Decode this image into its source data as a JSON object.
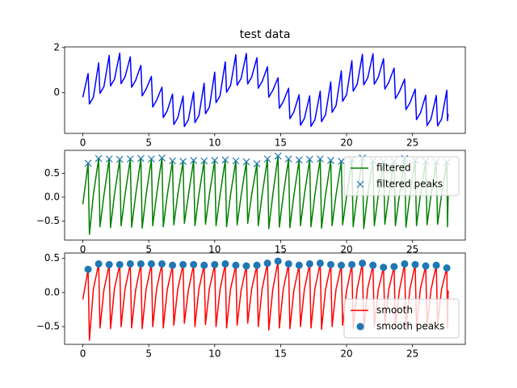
{
  "chart_data": [
    {
      "type": "line",
      "title": "test data",
      "x": [
        0,
        0.4,
        0.5,
        0.8,
        1.2,
        1.3,
        1.6,
        2.0,
        2.1,
        2.4,
        2.8,
        2.9,
        3.2,
        3.6,
        3.7,
        4.0,
        4.4,
        4.5,
        4.8,
        5.2,
        5.3,
        5.6,
        6.0,
        6.1,
        6.4,
        6.8,
        6.9,
        7.2,
        7.6,
        7.7,
        8.0,
        8.4,
        8.5,
        8.8,
        9.2,
        9.3,
        9.6,
        10.0,
        10.1,
        10.4,
        10.8,
        10.9,
        11.2,
        11.6,
        11.7,
        12.0,
        12.4,
        12.5,
        12.8,
        13.2,
        13.3,
        13.6,
        14.0,
        14.1,
        14.4,
        14.8,
        14.9,
        15.2,
        15.6,
        15.7,
        16.0,
        16.4,
        16.5,
        16.8,
        17.2,
        17.3,
        17.6,
        18.0,
        18.1,
        18.4,
        18.8,
        18.9,
        19.2,
        19.6,
        19.7,
        20.0,
        20.4,
        20.5,
        20.8,
        21.2,
        21.3,
        21.6,
        22.0,
        22.1,
        22.4,
        22.8,
        22.9,
        23.2,
        23.6,
        23.7,
        24.0,
        24.4,
        24.5,
        24.8,
        25.2,
        25.3,
        25.6,
        26.0,
        26.1,
        26.4,
        26.8,
        26.9,
        27.2,
        27.6,
        27.65,
        27.7
      ],
      "series": [
        {
          "color": "#0000ff",
          "values": [
            -0.2,
            0.85,
            -0.5,
            -0.2,
            1.32,
            -0.03,
            0.27,
            1.65,
            0.3,
            0.6,
            1.75,
            0.4,
            0.7,
            1.59,
            0.24,
            0.54,
            1.21,
            -0.14,
            0.16,
            0.72,
            -0.63,
            -0.33,
            0.25,
            -1.1,
            -0.8,
            -0.06,
            -1.41,
            -1.11,
            -0.15,
            -1.5,
            -1.2,
            0.03,
            -1.32,
            -1.02,
            0.42,
            -0.93,
            -0.63,
            0.91,
            -0.44,
            -0.14,
            1.37,
            0.02,
            0.32,
            1.68,
            0.33,
            0.63,
            1.74,
            0.39,
            0.69,
            1.55,
            0.2,
            0.5,
            1.15,
            -0.2,
            0.1,
            0.66,
            -0.69,
            -0.39,
            0.2,
            -1.15,
            -0.85,
            -0.09,
            -1.44,
            -1.14,
            -0.14,
            -1.49,
            -1.19,
            0.07,
            -1.28,
            -0.98,
            0.48,
            -0.87,
            -0.57,
            0.97,
            -0.38,
            -0.08,
            1.42,
            0.07,
            0.37,
            1.7,
            0.35,
            0.65,
            1.73,
            0.38,
            0.68,
            1.51,
            0.16,
            0.46,
            1.09,
            -0.26,
            0.04,
            0.6,
            -0.75,
            -0.45,
            0.16,
            -1.19,
            -0.89,
            -0.11,
            -1.46,
            -1.16,
            -0.12,
            -1.47,
            -1.17,
            0.11,
            -1.24,
            -0.94
          ]
        }
      ],
      "xlim": [
        -1.38,
        29.0
      ],
      "xticks": [
        0,
        5,
        10,
        15,
        20,
        25
      ],
      "ylim": [
        -1.8,
        2.03
      ],
      "yticks": [
        0,
        2
      ]
    },
    {
      "type": "line",
      "x": [
        0,
        0.4,
        0.5,
        0.8,
        1.2,
        1.3,
        1.6,
        2.0,
        2.1,
        2.4,
        2.8,
        2.9,
        3.2,
        3.6,
        3.7,
        4.0,
        4.4,
        4.5,
        4.8,
        5.2,
        5.3,
        5.6,
        6.0,
        6.1,
        6.4,
        6.8,
        6.9,
        7.2,
        7.6,
        7.7,
        8.0,
        8.4,
        8.5,
        8.8,
        9.2,
        9.3,
        9.6,
        10.0,
        10.1,
        10.4,
        10.8,
        10.9,
        11.2,
        11.6,
        11.7,
        12.0,
        12.4,
        12.5,
        12.8,
        13.2,
        13.3,
        13.6,
        14.0,
        14.1,
        14.4,
        14.8,
        14.9,
        15.2,
        15.6,
        15.7,
        16.0,
        16.4,
        16.5,
        16.8,
        17.2,
        17.3,
        17.6,
        18.0,
        18.1,
        18.4,
        18.8,
        18.9,
        19.2,
        19.6,
        19.7,
        20.0,
        20.4,
        20.5,
        20.8,
        21.2,
        21.3,
        21.6,
        22.0,
        22.1,
        22.4,
        22.8,
        22.9,
        23.2,
        23.6,
        23.7,
        24.0,
        24.4,
        24.5,
        24.8,
        25.2,
        25.3,
        25.6,
        26.0,
        26.1,
        26.4,
        26.8,
        26.9,
        27.2,
        27.6,
        27.65,
        27.7
      ],
      "series": [
        {
          "name": "filtered",
          "color": "#008000",
          "values": [
            -0.15,
            0.71,
            -0.78,
            0.05,
            0.81,
            -0.62,
            0.04,
            0.8,
            -0.64,
            0.06,
            0.79,
            -0.6,
            0.05,
            0.8,
            -0.63,
            0.03,
            0.81,
            -0.65,
            0.05,
            0.8,
            -0.6,
            0.06,
            0.82,
            -0.62,
            0.04,
            0.76,
            -0.58,
            0.05,
            0.75,
            -0.55,
            0.03,
            0.77,
            -0.6,
            0.05,
            0.76,
            -0.57,
            0.06,
            0.77,
            -0.6,
            0.04,
            0.78,
            -0.62,
            0.05,
            0.76,
            -0.58,
            0.03,
            0.74,
            -0.55,
            0.05,
            0.7,
            -0.6,
            0.06,
            0.8,
            -0.66,
            0.04,
            0.86,
            -0.63,
            0.05,
            0.8,
            -0.64,
            0.03,
            0.78,
            -0.6,
            0.05,
            0.79,
            -0.62,
            0.06,
            0.8,
            -0.65,
            0.04,
            0.77,
            -0.6,
            0.05,
            0.75,
            -0.58,
            0.03,
            0.78,
            -0.62,
            0.05,
            0.82,
            -0.66,
            0.06,
            0.76,
            -0.6,
            0.04,
            0.74,
            -0.57,
            0.05,
            0.75,
            -0.6,
            0.03,
            0.81,
            -0.63,
            0.05,
            0.77,
            -0.6,
            0.06,
            0.75,
            -0.58,
            0.04,
            0.74,
            -0.57,
            0.05,
            0.73,
            -0.62,
            0.03
          ]
        },
        {
          "name": "filtered peaks",
          "type": "scatter",
          "marker": "x",
          "color": "#1f77b4",
          "x": [
            0.4,
            1.2,
            2.0,
            2.8,
            3.6,
            4.4,
            5.2,
            6.0,
            6.8,
            7.6,
            8.4,
            9.2,
            10.0,
            10.8,
            11.6,
            12.4,
            13.2,
            14.0,
            14.8,
            15.6,
            16.4,
            17.2,
            18.0,
            18.8,
            19.6,
            20.4,
            21.2,
            22.0,
            22.8,
            23.6,
            24.4,
            25.2,
            26.0,
            26.8,
            27.6
          ],
          "values": [
            0.71,
            0.81,
            0.8,
            0.79,
            0.8,
            0.81,
            0.8,
            0.82,
            0.76,
            0.75,
            0.77,
            0.76,
            0.77,
            0.78,
            0.76,
            0.74,
            0.7,
            0.8,
            0.86,
            0.8,
            0.78,
            0.79,
            0.8,
            0.77,
            0.75,
            0.78,
            0.82,
            0.76,
            0.74,
            0.75,
            0.81,
            0.77,
            0.75,
            0.74,
            0.73
          ]
        }
      ],
      "legend": "upper right",
      "xlim": [
        -1.38,
        29.0
      ],
      "xticks": [
        0,
        5,
        10,
        15,
        20,
        25
      ],
      "ylim": [
        -0.9,
        0.98
      ],
      "yticks": [
        {
          "value": -0.5,
          "label": "−0.5"
        },
        {
          "value": 0,
          "label": "0.0"
        },
        0.5
      ]
    },
    {
      "type": "line",
      "x": [
        0,
        0.4,
        0.5,
        0.8,
        1.2,
        1.3,
        1.6,
        2.0,
        2.1,
        2.4,
        2.8,
        2.9,
        3.2,
        3.6,
        3.7,
        4.0,
        4.4,
        4.5,
        4.8,
        5.2,
        5.3,
        5.6,
        6.0,
        6.1,
        6.4,
        6.8,
        6.9,
        7.2,
        7.6,
        7.7,
        8.0,
        8.4,
        8.5,
        8.8,
        9.2,
        9.3,
        9.6,
        10.0,
        10.1,
        10.4,
        10.8,
        10.9,
        11.2,
        11.6,
        11.7,
        12.0,
        12.4,
        12.5,
        12.8,
        13.2,
        13.3,
        13.6,
        14.0,
        14.1,
        14.4,
        14.8,
        14.9,
        15.2,
        15.6,
        15.7,
        16.0,
        16.4,
        16.5,
        16.8,
        17.2,
        17.3,
        17.6,
        18.0,
        18.1,
        18.4,
        18.8,
        18.9,
        19.2,
        19.6,
        19.7,
        20.0,
        20.4,
        20.5,
        20.8,
        21.2,
        21.3,
        21.6,
        22.0,
        22.1,
        22.4,
        22.8,
        22.9,
        23.2,
        23.6,
        23.7,
        24.0,
        24.4,
        24.5,
        24.8,
        25.2,
        25.3,
        25.6,
        26.0,
        26.1,
        26.4,
        26.8,
        26.9,
        27.2,
        27.6,
        27.65,
        27.7
      ],
      "series": [
        {
          "name": "smooth",
          "color": "#ff0000",
          "values": [
            -0.1,
            0.34,
            -0.7,
            0.05,
            0.42,
            -0.52,
            0.04,
            0.41,
            -0.53,
            0.06,
            0.41,
            -0.5,
            0.05,
            0.42,
            -0.52,
            0.03,
            0.42,
            -0.53,
            0.05,
            0.42,
            -0.5,
            0.06,
            0.42,
            -0.52,
            0.04,
            0.4,
            -0.48,
            0.05,
            0.41,
            -0.45,
            0.03,
            0.41,
            -0.5,
            0.05,
            0.4,
            -0.47,
            0.06,
            0.41,
            -0.5,
            0.04,
            0.42,
            -0.52,
            0.05,
            0.4,
            -0.48,
            0.03,
            0.39,
            -0.45,
            0.05,
            0.4,
            -0.5,
            0.06,
            0.43,
            -0.55,
            0.04,
            0.46,
            -0.52,
            0.05,
            0.42,
            -0.53,
            0.03,
            0.4,
            -0.5,
            0.05,
            0.42,
            -0.52,
            0.06,
            0.43,
            -0.54,
            0.04,
            0.41,
            -0.5,
            0.05,
            0.4,
            -0.48,
            0.03,
            0.41,
            -0.52,
            0.05,
            0.43,
            -0.55,
            0.06,
            0.4,
            -0.5,
            0.04,
            0.37,
            -0.47,
            0.05,
            0.38,
            -0.5,
            0.03,
            0.42,
            -0.52,
            0.05,
            0.41,
            -0.5,
            0.06,
            0.39,
            -0.48,
            0.04,
            0.4,
            -0.47,
            0.05,
            0.36,
            -0.52,
            0.03
          ]
        },
        {
          "name": "smooth peaks",
          "type": "scatter",
          "marker": "o",
          "color": "#1f77b4",
          "x": [
            0.4,
            1.2,
            2.0,
            2.8,
            3.6,
            4.4,
            5.2,
            6.0,
            6.8,
            7.6,
            8.4,
            9.2,
            10.0,
            10.8,
            11.6,
            12.4,
            13.2,
            14.0,
            14.8,
            15.6,
            16.4,
            17.2,
            18.0,
            18.8,
            19.6,
            20.4,
            21.2,
            22.0,
            22.8,
            23.6,
            24.4,
            25.2,
            26.0,
            26.8,
            27.6
          ],
          "values": [
            0.34,
            0.42,
            0.41,
            0.41,
            0.42,
            0.42,
            0.42,
            0.42,
            0.4,
            0.41,
            0.41,
            0.4,
            0.41,
            0.42,
            0.4,
            0.39,
            0.4,
            0.43,
            0.46,
            0.42,
            0.4,
            0.42,
            0.43,
            0.41,
            0.4,
            0.41,
            0.43,
            0.4,
            0.37,
            0.38,
            0.42,
            0.41,
            0.39,
            0.4,
            0.36
          ]
        }
      ],
      "legend": "lower right",
      "xlim": [
        -1.38,
        29.0
      ],
      "xticks": [
        0,
        5,
        10,
        15,
        20,
        25
      ],
      "ylim": [
        -0.76,
        0.58
      ],
      "yticks": [
        {
          "value": -0.5,
          "label": "−0.5"
        },
        {
          "value": 0,
          "label": "0.0"
        },
        0.5
      ]
    }
  ]
}
